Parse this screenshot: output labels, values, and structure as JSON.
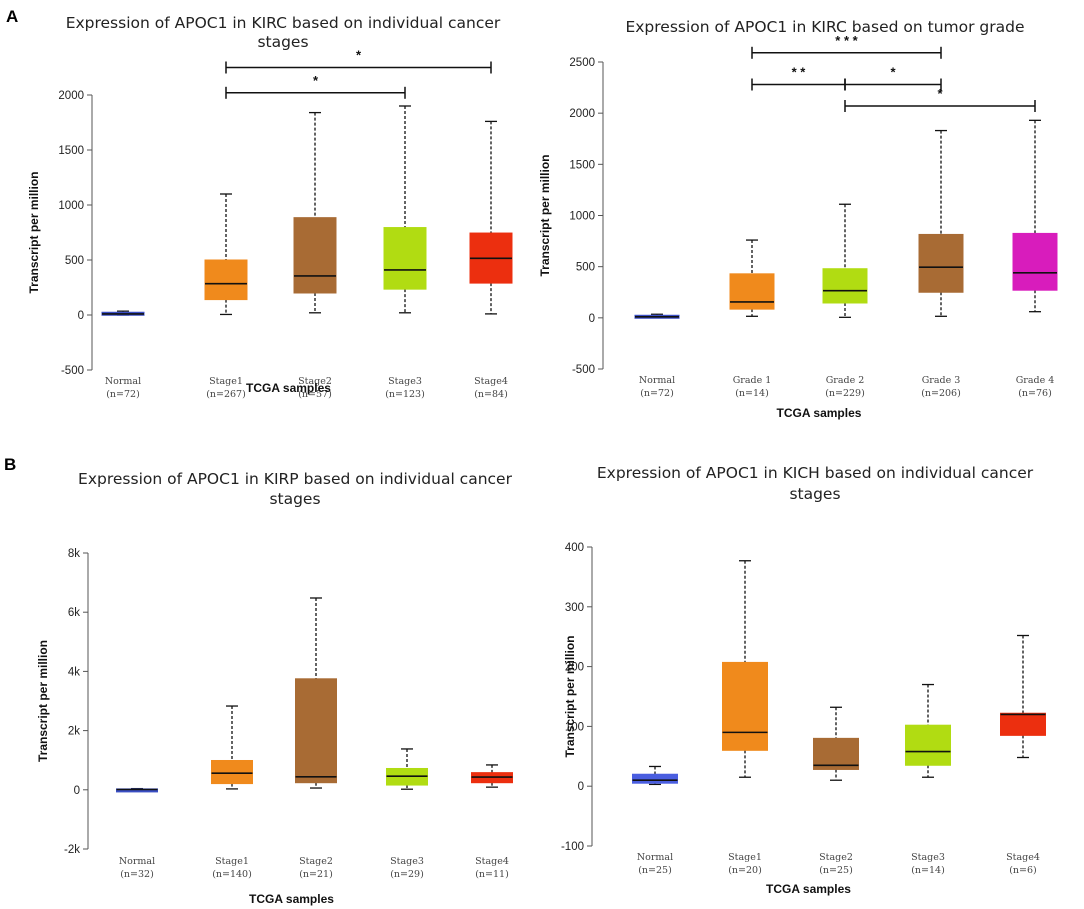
{
  "panel_labels": [
    "A",
    "B"
  ],
  "chart_data": [
    {
      "type": "box",
      "title_lines": [
        "Expression of APOC1 in KIRC based on individual cancer",
        "stages"
      ],
      "xlabel": "TCGA samples",
      "ylabel": "Transcript per million",
      "ylim": [
        -500,
        2000
      ],
      "yticks": [
        -500,
        0,
        500,
        1000,
        1500,
        2000
      ],
      "ytick_labels": [
        "-500",
        "0",
        "500",
        "1000",
        "1500",
        "2000"
      ],
      "categories": [
        "Normal",
        "Stage1",
        "Stage2",
        "Stage3",
        "Stage4"
      ],
      "counts": [
        "(n=72)",
        "(n=267)",
        "(n=57)",
        "(n=123)",
        "(n=84)"
      ],
      "colors": [
        "#3b4fc4",
        "#f08a1c",
        "#a86b34",
        "#b1dc12",
        "#ec2f0f"
      ],
      "boxes": [
        {
          "min": 0,
          "q1": 0,
          "median": 10,
          "q3": 25,
          "max": 35
        },
        {
          "min": 5,
          "q1": 140,
          "median": 285,
          "q3": 500,
          "max": 1100
        },
        {
          "min": 20,
          "q1": 200,
          "median": 355,
          "q3": 885,
          "max": 1840
        },
        {
          "min": 20,
          "q1": 235,
          "median": 410,
          "q3": 795,
          "max": 1900
        },
        {
          "min": 10,
          "q1": 290,
          "median": 515,
          "q3": 745,
          "max": 1760
        }
      ],
      "significance": [
        {
          "from": 1,
          "to": 4,
          "y": 2250,
          "label": "*"
        },
        {
          "from": 1,
          "to": 3,
          "y": 2020,
          "label": "*"
        }
      ]
    },
    {
      "type": "box",
      "title_lines": [
        "Expression of APOC1 in KIRC based on tumor grade"
      ],
      "xlabel": "TCGA samples",
      "ylabel": "Transcript per million",
      "ylim": [
        -500,
        2500
      ],
      "yticks": [
        -500,
        0,
        500,
        1000,
        1500,
        2000,
        2500
      ],
      "ytick_labels": [
        "-500",
        "0",
        "500",
        "1000",
        "1500",
        "2000",
        "2500"
      ],
      "categories": [
        "Normal",
        "Grade 1",
        "Grade 2",
        "Grade 3",
        "Grade 4"
      ],
      "counts": [
        "(n=72)",
        "(n=14)",
        "(n=229)",
        "(n=206)",
        "(n=76)"
      ],
      "colors": [
        "#3b4fc4",
        "#f08a1c",
        "#b1dc12",
        "#a86b34",
        "#d81cbc"
      ],
      "boxes": [
        {
          "min": 0,
          "q1": 0,
          "median": 10,
          "q3": 25,
          "max": 35
        },
        {
          "min": 15,
          "q1": 85,
          "median": 155,
          "q3": 430,
          "max": 760
        },
        {
          "min": 5,
          "q1": 145,
          "median": 265,
          "q3": 480,
          "max": 1110
        },
        {
          "min": 15,
          "q1": 250,
          "median": 495,
          "q3": 815,
          "max": 1830
        },
        {
          "min": 60,
          "q1": 270,
          "median": 440,
          "q3": 825,
          "max": 1930
        }
      ],
      "significance": [
        {
          "from": 1,
          "to": 3,
          "y": 2590,
          "label": "* * *"
        },
        {
          "from": 1,
          "to": 2,
          "y": 2280,
          "label": "* *"
        },
        {
          "from": 2,
          "to": 3,
          "y": 2280,
          "label": "*"
        },
        {
          "from": 2,
          "to": 4,
          "y": 2070,
          "label": "*"
        }
      ]
    },
    {
      "type": "box",
      "title_lines": [
        "Expression of APOC1 in KIRP based on individual cancer",
        "stages"
      ],
      "xlabel": "TCGA samples",
      "ylabel": "Transcript per million",
      "ylim": [
        -2000,
        8000
      ],
      "yticks": [
        -2000,
        0,
        2000,
        4000,
        6000,
        8000
      ],
      "ytick_labels": [
        "-2k",
        "0",
        "2k",
        "4k",
        "6k",
        "8k"
      ],
      "categories": [
        "Normal",
        "Stage1",
        "Stage2",
        "Stage3",
        "Stage4"
      ],
      "counts": [
        "(n=32)",
        "(n=140)",
        "(n=21)",
        "(n=29)",
        "(n=11)"
      ],
      "colors": [
        "#3b4fc4",
        "#f08a1c",
        "#a86b34",
        "#b1dc12",
        "#ec2f0f"
      ],
      "boxes": [
        {
          "min": 0,
          "q1": 0,
          "median": 10,
          "q3": 30,
          "max": 40
        },
        {
          "min": 30,
          "q1": 210,
          "median": 560,
          "q3": 990,
          "max": 2830
        },
        {
          "min": 60,
          "q1": 240,
          "median": 440,
          "q3": 3750,
          "max": 6480
        },
        {
          "min": 20,
          "q1": 160,
          "median": 460,
          "q3": 720,
          "max": 1380
        },
        {
          "min": 90,
          "q1": 240,
          "median": 430,
          "q3": 580,
          "max": 840
        }
      ],
      "significance": []
    },
    {
      "type": "box",
      "title_lines": [
        "Expression of APOC1 in KICH based on individual cancer",
        "stages"
      ],
      "xlabel": "TCGA samples",
      "ylabel": "Transcript per million",
      "ylim": [
        -100,
        400
      ],
      "yticks": [
        -100,
        0,
        100,
        200,
        300,
        400
      ],
      "ytick_labels": [
        "-100",
        "0",
        "100",
        "200",
        "300",
        "400"
      ],
      "categories": [
        "Normal",
        "Stage1",
        "Stage2",
        "Stage3",
        "Stage4"
      ],
      "counts": [
        "(n=25)",
        "(n=20)",
        "(n=25)",
        "(n=14)",
        "(n=6)"
      ],
      "colors": [
        "#4a5ee0",
        "#f08a1c",
        "#a86b34",
        "#b1dc12",
        "#ec2f0f"
      ],
      "boxes": [
        {
          "min": 3,
          "q1": 5,
          "median": 10,
          "q3": 20,
          "max": 33
        },
        {
          "min": 15,
          "q1": 60,
          "median": 90,
          "q3": 207,
          "max": 377
        },
        {
          "min": 10,
          "q1": 28,
          "median": 35,
          "q3": 80,
          "max": 132
        },
        {
          "min": 15,
          "q1": 35,
          "median": 58,
          "q3": 102,
          "max": 170
        },
        {
          "min": 48,
          "q1": 85,
          "median": 120,
          "q3": 122,
          "max": 252
        }
      ],
      "significance": []
    }
  ]
}
